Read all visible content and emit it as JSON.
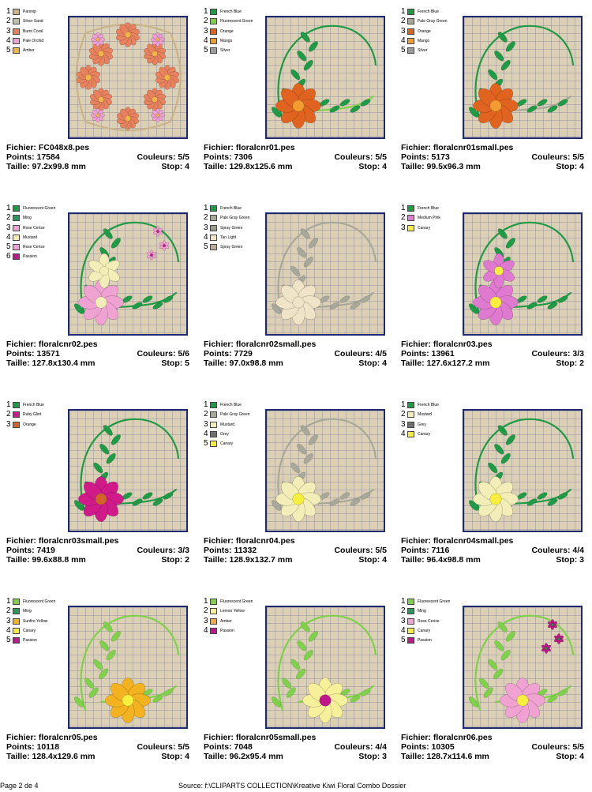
{
  "labels": {
    "file": "Fichier: ",
    "points": "Points: ",
    "size": "Taille: ",
    "colors": "Couleurs: ",
    "stop": "Stop: "
  },
  "designs": [
    {
      "file": "FC048x8.pes",
      "points": "17584",
      "size": "97.2x99.8 mm",
      "colors": "5/5",
      "stop": "4",
      "legend": [
        {
          "n": "1",
          "name": "Parsnip",
          "color": "#c9b48a"
        },
        {
          "n": "2",
          "name": "Silver Sand",
          "color": "#bfbfae"
        },
        {
          "n": "3",
          "name": "Burnt Coral",
          "color": "#e8825e"
        },
        {
          "n": "4",
          "name": "Pale Orchid",
          "color": "#f0a0d8"
        },
        {
          "n": "5",
          "name": "Amber",
          "color": "#f3b34b"
        }
      ]
    },
    {
      "file": "floralcnr01.pes",
      "points": "7306",
      "size": "129.8x125.6 mm",
      "colors": "5/5",
      "stop": "4",
      "legend": [
        {
          "n": "1",
          "name": "French Blue",
          "color": "#1f9a46"
        },
        {
          "n": "2",
          "name": "Fluorescent Green",
          "color": "#7fd04a"
        },
        {
          "n": "3",
          "name": "Orange",
          "color": "#e0641f"
        },
        {
          "n": "4",
          "name": "Mango",
          "color": "#f39c32"
        },
        {
          "n": "5",
          "name": "Silver",
          "color": "#9c9c9c"
        }
      ]
    },
    {
      "file": "floralcnr01small.pes",
      "points": "5173",
      "size": "99.5x96.3 mm",
      "colors": "5/5",
      "stop": "4",
      "legend": [
        {
          "n": "1",
          "name": "French Blue",
          "color": "#1f9a46"
        },
        {
          "n": "2",
          "name": "Pale Gray Green",
          "color": "#a8a89a"
        },
        {
          "n": "3",
          "name": "Orange",
          "color": "#e0641f"
        },
        {
          "n": "4",
          "name": "Mango",
          "color": "#f39c32"
        },
        {
          "n": "5",
          "name": "Silver",
          "color": "#9c9c9c"
        }
      ]
    },
    {
      "file": "floralcnr02.pes",
      "points": "13571",
      "size": "127.8x130.4 mm",
      "colors": "5/6",
      "stop": "5",
      "legend": [
        {
          "n": "1",
          "name": "Fluorescent Green",
          "color": "#1f9a46"
        },
        {
          "n": "2",
          "name": "Ming",
          "color": "#2a9a5a"
        },
        {
          "n": "3",
          "name": "Rose Cerise",
          "color": "#f0a3d2"
        },
        {
          "n": "4",
          "name": "Mustard",
          "color": "#f3eeb8"
        },
        {
          "n": "5",
          "name": "Rose Cerise",
          "color": "#f0a3d2"
        },
        {
          "n": "6",
          "name": "Passion",
          "color": "#c0188a"
        }
      ]
    },
    {
      "file": "floralcnr02small.pes",
      "points": "7729",
      "size": "97.0x98.8 mm",
      "colors": "4/5",
      "stop": "4",
      "legend": [
        {
          "n": "1",
          "name": "French Blue",
          "color": "#1f9a46"
        },
        {
          "n": "2",
          "name": "Pale Gray Green",
          "color": "#a8a89a"
        },
        {
          "n": "3",
          "name": "Spray Green",
          "color": "#9a9a8c"
        },
        {
          "n": "4",
          "name": "Tan Light",
          "color": "#efe4c8"
        },
        {
          "n": "5",
          "name": "Spray Green",
          "color": "#b8ae9a"
        }
      ]
    },
    {
      "file": "floralcnr03.pes",
      "points": "13961",
      "size": "127.6x127.2 mm",
      "colors": "3/3",
      "stop": "2",
      "legend": [
        {
          "n": "1",
          "name": "French Blue",
          "color": "#1f9a46"
        },
        {
          "n": "2",
          "name": "Medium Pink",
          "color": "#e07ad0"
        },
        {
          "n": "3",
          "name": "Canary",
          "color": "#f7ef3e"
        }
      ]
    },
    {
      "file": "floralcnr03small.pes",
      "points": "7419",
      "size": "99.6x88.8 mm",
      "colors": "3/3",
      "stop": "2",
      "legend": [
        {
          "n": "1",
          "name": "French Blue",
          "color": "#1f9a46"
        },
        {
          "n": "2",
          "name": "Ruby Glint",
          "color": "#d01a8a"
        },
        {
          "n": "3",
          "name": "Orange",
          "color": "#d0642a"
        }
      ]
    },
    {
      "file": "floralcnr04.pes",
      "points": "11332",
      "size": "128.9x132.7 mm",
      "colors": "5/5",
      "stop": "4",
      "legend": [
        {
          "n": "1",
          "name": "French Blue",
          "color": "#1f9a46"
        },
        {
          "n": "2",
          "name": "Pale Gray Green",
          "color": "#a8a89a"
        },
        {
          "n": "3",
          "name": "Mustard",
          "color": "#f3eeb8"
        },
        {
          "n": "4",
          "name": "Grey",
          "color": "#707070"
        },
        {
          "n": "5",
          "name": "Canary",
          "color": "#f7ef3e"
        }
      ]
    },
    {
      "file": "floralcnr04small.pes",
      "points": "7116",
      "size": "96.4x98.8 mm",
      "colors": "4/4",
      "stop": "3",
      "legend": [
        {
          "n": "1",
          "name": "French Blue",
          "color": "#1f9a46"
        },
        {
          "n": "2",
          "name": "Mustard",
          "color": "#f3eeb8"
        },
        {
          "n": "3",
          "name": "Grey",
          "color": "#707070"
        },
        {
          "n": "4",
          "name": "Canary",
          "color": "#f7ef3e"
        }
      ]
    },
    {
      "file": "floralcnr05.pes",
      "points": "10118",
      "size": "128.4x129.6 mm",
      "colors": "5/5",
      "stop": "4",
      "legend": [
        {
          "n": "1",
          "name": "Fluorescent Green",
          "color": "#7fd04a"
        },
        {
          "n": "2",
          "name": "Ming",
          "color": "#2a9a5a"
        },
        {
          "n": "3",
          "name": "Sunfire Yellow",
          "color": "#f3b320"
        },
        {
          "n": "4",
          "name": "Canary",
          "color": "#f7ef3e"
        },
        {
          "n": "5",
          "name": "Passion",
          "color": "#c0188a"
        }
      ]
    },
    {
      "file": "floralcnr05small.pes",
      "points": "7048",
      "size": "96.2x95.4 mm",
      "colors": "4/4",
      "stop": "3",
      "legend": [
        {
          "n": "1",
          "name": "Fluorescent Green",
          "color": "#7fd04a"
        },
        {
          "n": "2",
          "name": "Lemon Yellow",
          "color": "#f7f09a"
        },
        {
          "n": "3",
          "name": "Amber",
          "color": "#f3a84b"
        },
        {
          "n": "4",
          "name": "Passion",
          "color": "#c0188a"
        }
      ]
    },
    {
      "file": "floralcnr06.pes",
      "points": "10305",
      "size": "128.7x114.6 mm",
      "colors": "5/5",
      "stop": "4",
      "legend": [
        {
          "n": "1",
          "name": "Fluorescent Green",
          "color": "#7fd04a"
        },
        {
          "n": "2",
          "name": "Ming",
          "color": "#2a9a5a"
        },
        {
          "n": "3",
          "name": "Rose Cerise",
          "color": "#f0a3d2"
        },
        {
          "n": "4",
          "name": "Canary",
          "color": "#f7ef3e"
        },
        {
          "n": "5",
          "name": "Passion",
          "color": "#c0188a"
        }
      ]
    }
  ],
  "footer": {
    "page": "Page 2 de 4",
    "source": "Source: f:\\CLIPARTS COLLECTION\\Kreative Kiwi Floral Combo Dossier"
  }
}
